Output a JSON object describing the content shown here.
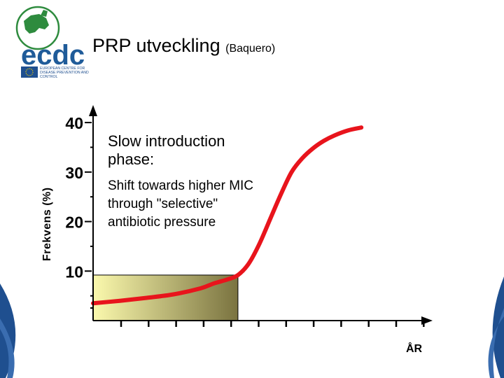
{
  "logo": {
    "wordmark": "ecdc",
    "org_lines": [
      "EUROPEAN CENTRE FOR",
      "DISEASE PREVENTION AND",
      "CONTROL"
    ]
  },
  "slide": {
    "title": "PRP utveckling",
    "subtitle": "(Baquero)"
  },
  "annotation": {
    "heading_lines": [
      "Slow introduction",
      "phase:"
    ],
    "body_lines": [
      "Shift towards higher MIC",
      "through \"selective\"",
      "antibiotic pressure"
    ]
  },
  "colors": {
    "curve": "#e8141c",
    "axis": "#000000",
    "shade_start": "#fbf9ad",
    "shade_end": "#7a7340",
    "corner_blue": "#1f4f8f",
    "logo_green": "#2e8b3e",
    "logo_blue": "#1f5b99"
  },
  "chart_data": {
    "type": "line",
    "ylabel": "Frekvens (%)",
    "xlabel": "ÅR",
    "yticks": [
      {
        "value": 10,
        "label": "10"
      },
      {
        "value": 20,
        "label": "20"
      },
      {
        "value": 30,
        "label": "30"
      },
      {
        "value": 40,
        "label": "40"
      }
    ],
    "ylim": [
      0,
      41
    ],
    "xlim": [
      0,
      12.5
    ],
    "x_tick_count": 12,
    "y_minor_ticks": [
      5,
      15,
      25,
      35
    ],
    "shaded_region": {
      "x_start": 0,
      "x_end": 5.4,
      "y_start": 0,
      "y_end": 9.2
    },
    "series": [
      {
        "x": [
          0,
          1,
          2,
          3,
          4,
          4.5,
          5,
          5.4,
          5.8,
          6.2,
          6.6,
          7.0,
          7.4,
          7.8,
          8.2,
          8.6,
          9.0,
          9.5,
          10.0
        ],
        "y": [
          3.5,
          4.0,
          4.6,
          5.3,
          6.5,
          7.5,
          8.3,
          9.2,
          11.5,
          15.5,
          20.5,
          25.5,
          30.0,
          32.8,
          34.8,
          36.3,
          37.4,
          38.4,
          39.0
        ]
      }
    ]
  }
}
